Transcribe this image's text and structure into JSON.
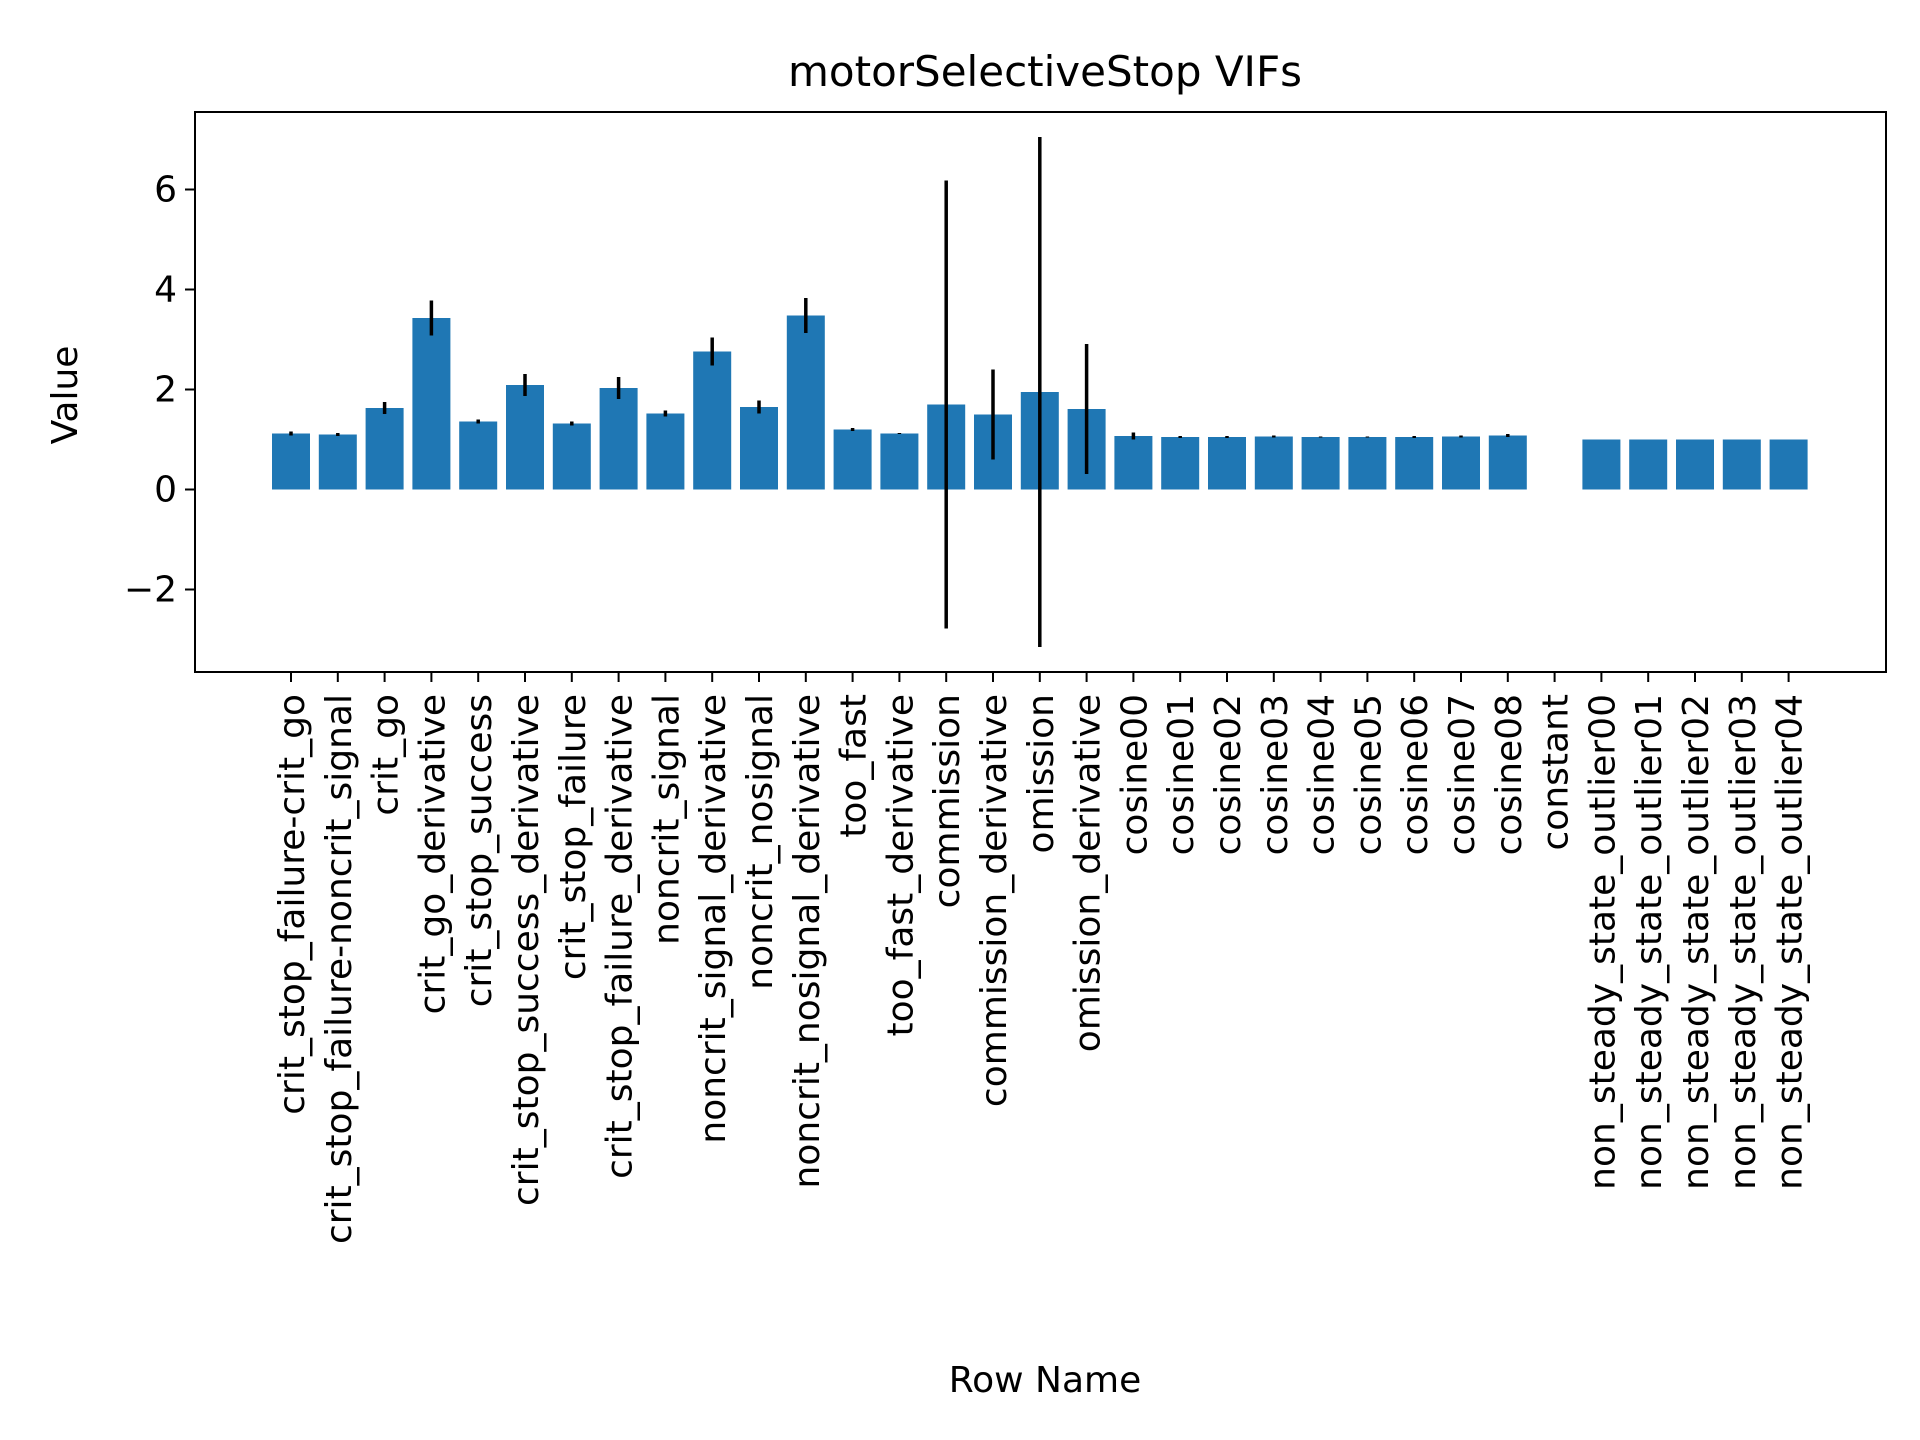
{
  "chart_data": {
    "type": "bar",
    "title": "motorSelectiveStop VIFs",
    "xlabel": "Row Name",
    "ylabel": "Value",
    "ylim": [
      -3.65,
      7.55
    ],
    "yticks": [
      -2,
      0,
      2,
      4,
      6
    ],
    "ytick_labels": [
      "−2",
      "0",
      "2",
      "4",
      "6"
    ],
    "grid": false,
    "legend": "none",
    "bar_color": "#1f77b4",
    "error_color": "#000000",
    "categories": [
      "crit_stop_failure-crit_go",
      "crit_stop_failure-noncrit_signal",
      "crit_go",
      "crit_go_derivative",
      "crit_stop_success",
      "crit_stop_success_derivative",
      "crit_stop_failure",
      "crit_stop_failure_derivative",
      "noncrit_signal",
      "noncrit_signal_derivative",
      "noncrit_nosignal",
      "noncrit_nosignal_derivative",
      "too_fast",
      "too_fast_derivative",
      "commission",
      "commission_derivative",
      "omission",
      "omission_derivative",
      "cosine00",
      "cosine01",
      "cosine02",
      "cosine03",
      "cosine04",
      "cosine05",
      "cosine06",
      "cosine07",
      "cosine08",
      "constant",
      "non_steady_state_outlier00",
      "non_steady_state_outlier01",
      "non_steady_state_outlier02",
      "non_steady_state_outlier03",
      "non_steady_state_outlier04"
    ],
    "values": [
      1.12,
      1.1,
      1.63,
      3.43,
      1.36,
      2.09,
      1.32,
      2.03,
      1.52,
      2.76,
      1.65,
      3.48,
      1.2,
      1.12,
      1.7,
      1.5,
      1.95,
      1.61,
      1.07,
      1.05,
      1.05,
      1.06,
      1.05,
      1.05,
      1.05,
      1.06,
      1.08,
      null,
      1.0,
      1.0,
      1.0,
      1.0,
      1.0
    ],
    "errors": [
      0.04,
      0.03,
      0.12,
      0.35,
      0.04,
      0.22,
      0.04,
      0.22,
      0.06,
      0.28,
      0.13,
      0.35,
      0.03,
      0.01,
      4.48,
      0.9,
      5.1,
      1.3,
      0.07,
      0.02,
      0.02,
      0.02,
      0.01,
      0.01,
      0.02,
      0.02,
      0.03,
      null,
      0.0,
      0.0,
      0.0,
      0.0,
      0.0
    ]
  }
}
